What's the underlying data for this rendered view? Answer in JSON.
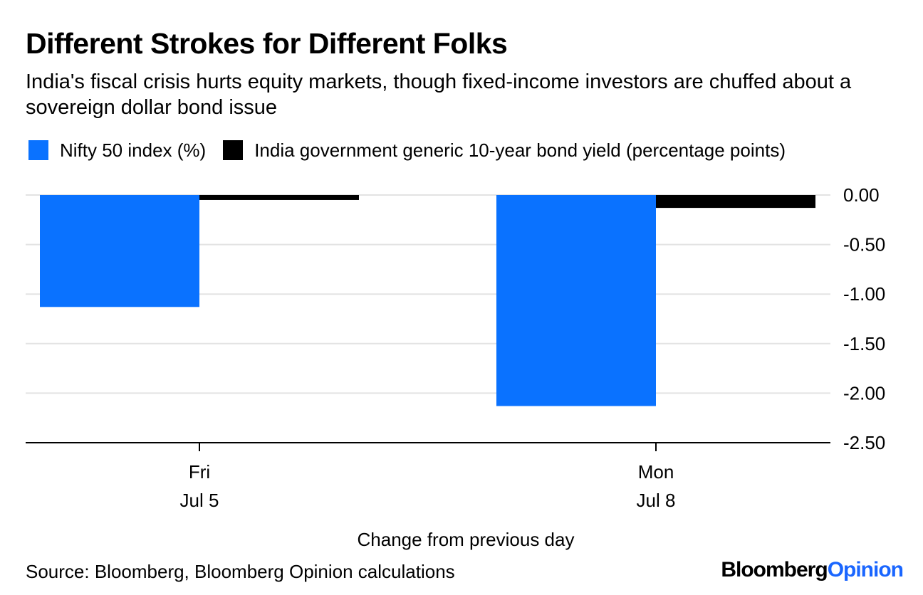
{
  "header": {
    "title": "Different Strokes for Different Folks",
    "subtitle": "India's fiscal crisis hurts equity markets, though fixed-income investors are chuffed about a sovereign dollar bond issue"
  },
  "legend": [
    {
      "label": "Nifty 50 index (%)",
      "color": "#0a72ff"
    },
    {
      "label": "India government generic 10-year bond yield (percentage points)",
      "color": "#000000"
    }
  ],
  "chart_data": {
    "type": "bar",
    "categories": [
      [
        "Fri",
        "Jul 5"
      ],
      [
        "Mon",
        "Jul 8"
      ]
    ],
    "series": [
      {
        "name": "Nifty 50 index (%)",
        "color": "#0a72ff",
        "values": [
          -1.13,
          -2.13
        ]
      },
      {
        "name": "India government generic 10-year bond yield (percentage points)",
        "color": "#000000",
        "values": [
          -0.05,
          -0.13
        ]
      }
    ],
    "ylim": [
      -2.5,
      0
    ],
    "yticks": [
      0,
      -0.5,
      -1,
      -1.5,
      -2,
      -2.5
    ],
    "ytick_labels": [
      "0.00",
      "-0.50",
      "-1.00",
      "-1.50",
      "-2.00",
      "-2.50"
    ],
    "xlabel": "Change from previous day",
    "ylabel": "",
    "grid": true,
    "title": "Different Strokes for Different Folks"
  },
  "footer": {
    "source": "Source: Bloomberg, Bloomberg Opinion calculations",
    "logo_part1": "Bloomberg",
    "logo_part2": "Opinion"
  }
}
